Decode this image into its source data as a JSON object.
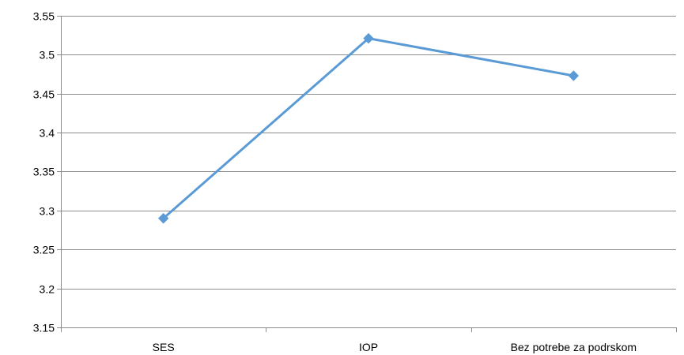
{
  "chart_data": {
    "type": "line",
    "title": "",
    "xlabel": "",
    "ylabel": "",
    "categories": [
      "SES",
      "IOP",
      "Bez potrebe za podrskom"
    ],
    "series": [
      {
        "values": [
          3.29,
          3.521,
          3.473
        ],
        "color": "#5b9bd5",
        "marker": "diamond"
      }
    ],
    "ylim": [
      3.15,
      3.55
    ],
    "yticks": [
      "3.15",
      "3.2",
      "3.25",
      "3.3",
      "3.35",
      "3.4",
      "3.45",
      "3.5",
      "3.55"
    ],
    "grid": true,
    "legend": "none"
  }
}
